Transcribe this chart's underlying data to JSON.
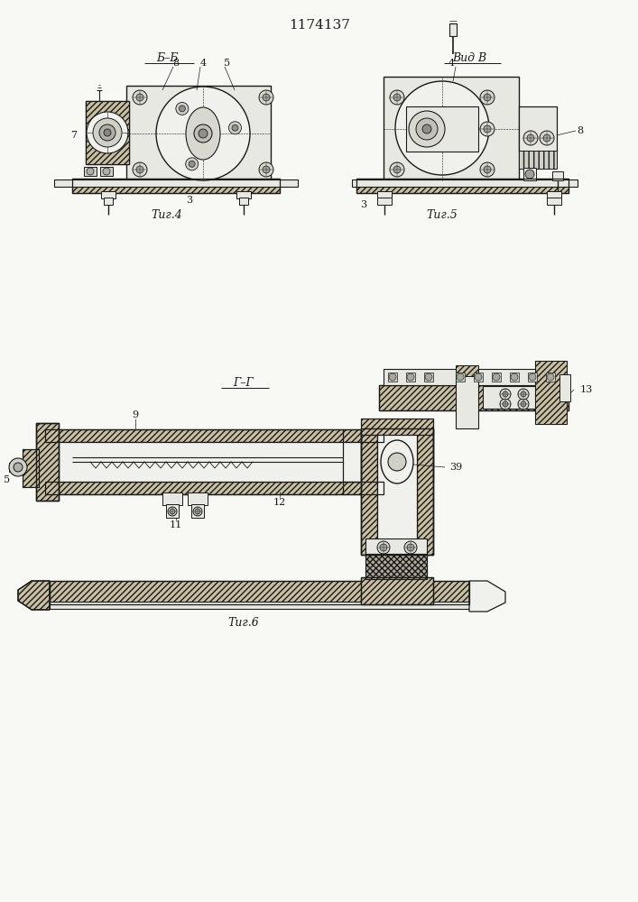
{
  "title": "1174137",
  "background_color": "#f8f8f5",
  "line_color": "#1a1a1a",
  "fig4_label": "Τиг.4",
  "fig5_label": "Τиг.5",
  "fig6_label": "Τиг.6",
  "section_bb": "Б–Б",
  "section_vb": "Вид В",
  "section_gg": "Г–Г",
  "hatch_fill": "#c8c0a0",
  "body_fill": "#e8e8e2",
  "dark_fill": "#b0b0a8",
  "white_fill": "#f0f0ec"
}
